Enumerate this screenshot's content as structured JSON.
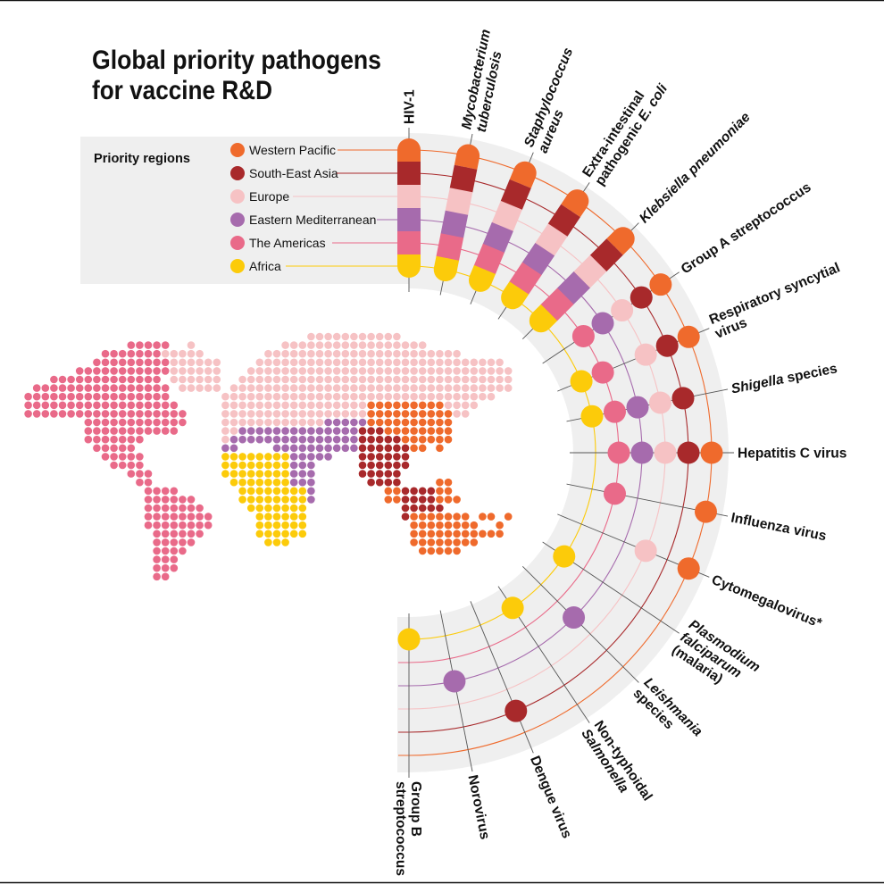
{
  "title": {
    "line1": "Global priority pathogens",
    "line2": "for vaccine R&D"
  },
  "legend": {
    "heading": "Priority regions",
    "regions": [
      {
        "name": "Western Pacific",
        "color": "#ef6a2c"
      },
      {
        "name": "South-East Asia",
        "color": "#a8292b"
      },
      {
        "name": "Europe",
        "color": "#f6c2c4"
      },
      {
        "name": "Eastern Mediterranean",
        "color": "#a66bad"
      },
      {
        "name": "The Americas",
        "color": "#e96a89"
      },
      {
        "name": "Africa",
        "color": "#fccb0a"
      }
    ]
  },
  "chart_data": {
    "type": "table",
    "title": "Global priority pathogens for vaccine R&D",
    "columns": [
      "Western Pacific",
      "South-East Asia",
      "Europe",
      "Eastern Mediterranean",
      "The Americas",
      "Africa"
    ],
    "pathogens": [
      {
        "label_lines": [
          [
            {
              "t": "HIV-1",
              "i": false
            }
          ]
        ],
        "regions": [
          "Western Pacific",
          "South-East Asia",
          "Europe",
          "Eastern Mediterranean",
          "The Americas",
          "Africa"
        ]
      },
      {
        "label_lines": [
          [
            {
              "t": "Mycobacterium",
              "i": true
            }
          ],
          [
            {
              "t": "tuberculosis",
              "i": true
            }
          ]
        ],
        "regions": [
          "Western Pacific",
          "South-East Asia",
          "Europe",
          "Eastern Mediterranean",
          "The Americas",
          "Africa"
        ]
      },
      {
        "label_lines": [
          [
            {
              "t": "Staphylococcus",
              "i": true
            }
          ],
          [
            {
              "t": "aureus",
              "i": true
            }
          ]
        ],
        "regions": [
          "Western Pacific",
          "South-East Asia",
          "Europe",
          "Eastern Mediterranean",
          "The Americas",
          "Africa"
        ]
      },
      {
        "label_lines": [
          [
            {
              "t": "Extra-intestinal",
              "i": false
            }
          ],
          [
            {
              "t": "pathogenic ",
              "i": false
            },
            {
              "t": "E. coli",
              "i": true
            }
          ]
        ],
        "regions": [
          "Western Pacific",
          "South-East Asia",
          "Europe",
          "Eastern Mediterranean",
          "The Americas",
          "Africa"
        ]
      },
      {
        "label_lines": [
          [
            {
              "t": "Klebsiella pneumoniae",
              "i": true
            }
          ]
        ],
        "regions": [
          "Western Pacific",
          "South-East Asia",
          "Europe",
          "Eastern Mediterranean",
          "The Americas",
          "Africa"
        ]
      },
      {
        "label_lines": [
          [
            {
              "t": "Group A streptococcus",
              "i": false
            }
          ]
        ],
        "regions": [
          "Western Pacific",
          "South-East Asia",
          "Europe",
          "Eastern Mediterranean",
          "The Americas"
        ]
      },
      {
        "label_lines": [
          [
            {
              "t": "Respiratory syncytial",
              "i": false
            }
          ],
          [
            {
              "t": "virus",
              "i": false
            }
          ]
        ],
        "regions": [
          "Western Pacific",
          "South-East Asia",
          "Europe",
          "The Americas",
          "Africa"
        ]
      },
      {
        "label_lines": [
          [
            {
              "t": "Shigella",
              "i": true
            },
            {
              "t": " species",
              "i": false
            }
          ]
        ],
        "regions": [
          "South-East Asia",
          "Europe",
          "Eastern Mediterranean",
          "The Americas",
          "Africa"
        ]
      },
      {
        "label_lines": [
          [
            {
              "t": "Hepatitis C virus",
              "i": false
            }
          ]
        ],
        "regions": [
          "Western Pacific",
          "South-East Asia",
          "Europe",
          "Eastern Mediterranean",
          "The Americas"
        ]
      },
      {
        "label_lines": [
          [
            {
              "t": "Influenza virus",
              "i": false
            }
          ]
        ],
        "regions": [
          "Western Pacific",
          "The Americas"
        ]
      },
      {
        "label_lines": [
          [
            {
              "t": "Cytomegalovirus*",
              "i": false
            }
          ]
        ],
        "regions": [
          "Western Pacific",
          "Europe"
        ]
      },
      {
        "label_lines": [
          [
            {
              "t": "Plasmodium",
              "i": true
            }
          ],
          [
            {
              "t": "falciparum",
              "i": true
            }
          ],
          [
            {
              "t": "(malaria)",
              "i": false
            }
          ]
        ],
        "regions": [
          "Africa"
        ]
      },
      {
        "label_lines": [
          [
            {
              "t": "Leishmania",
              "i": true
            }
          ],
          [
            {
              "t": "species",
              "i": false
            }
          ]
        ],
        "regions": [
          "Eastern Mediterranean"
        ]
      },
      {
        "label_lines": [
          [
            {
              "t": "Non-typhoidal",
              "i": false
            }
          ],
          [
            {
              "t": "Salmonella",
              "i": true
            }
          ]
        ],
        "regions": [
          "Africa"
        ]
      },
      {
        "label_lines": [
          [
            {
              "t": "Dengue virus",
              "i": false
            }
          ]
        ],
        "regions": [
          "South-East Asia"
        ]
      },
      {
        "label_lines": [
          [
            {
              "t": "Norovirus",
              "i": false
            }
          ]
        ],
        "regions": [
          "Eastern Mediterranean"
        ]
      },
      {
        "label_lines": [
          [
            {
              "t": "Group B",
              "i": false
            }
          ],
          [
            {
              "t": "streptococcus",
              "i": false
            }
          ]
        ],
        "regions": [
          "Africa"
        ]
      }
    ]
  }
}
